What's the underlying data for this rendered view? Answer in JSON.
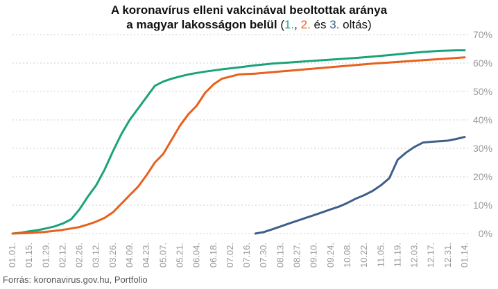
{
  "title": {
    "line1": "A koronavírus elleni vakcinával beoltottak aránya",
    "line2_main": "a magyar lakosságon belül",
    "open_paren": " (",
    "dose1": "1.",
    "comma": ", ",
    "dose2": "2.",
    "and": " és ",
    "dose3": "3.",
    "suffix": " oltás)"
  },
  "source": "Forrás: koronavirus.gov.hu, Portfolio",
  "colors": {
    "dose1": "#1aa37a",
    "dose2": "#e8601c",
    "dose3": "#3d5f8a",
    "grid": "#cccccc",
    "axis_text": "#9a9a9a"
  },
  "chart_data": {
    "type": "line",
    "title": "A koronavírus elleni vakcinával beoltottak aránya a magyar lakosságon belül (1., 2. és 3. oltás)",
    "ylim": [
      0,
      70
    ],
    "yticks": [
      0,
      10,
      20,
      30,
      40,
      50,
      60,
      70
    ],
    "ytick_labels": [
      "0%",
      "10%",
      "20%",
      "30%",
      "40%",
      "50%",
      "60%",
      "70%"
    ],
    "y_axis_side": "right",
    "grid": "horizontal",
    "x_tick_labels": [
      "01.01.",
      "01.15.",
      "01.29.",
      "02.12.",
      "02.26.",
      "03.12.",
      "03.26.",
      "04.09.",
      "04.23.",
      "05.07.",
      "05.21.",
      "06.04.",
      "06.18.",
      "07.02.",
      "07.16.",
      "07.30.",
      "08.13.",
      "08.27.",
      "09.10.",
      "09.24.",
      "10.08.",
      "10.22.",
      "11.05.",
      "11.19.",
      "12.03.",
      "12.17.",
      "12.31.",
      "01.14."
    ],
    "x_unit": "day index from first tick (01.01.), 14 days per tick",
    "series": [
      {
        "name": "1.",
        "x": [
          0,
          7,
          14,
          21,
          28,
          35,
          42,
          49,
          56,
          63,
          70,
          77,
          84,
          91,
          98,
          105,
          112,
          119,
          126,
          133,
          140,
          147,
          154,
          161,
          168,
          175,
          189,
          203,
          217,
          231,
          245,
          259,
          273,
          287,
          301,
          315,
          329,
          343,
          357,
          371,
          378
        ],
        "values": [
          0,
          0.3,
          0.8,
          1.2,
          1.8,
          2.5,
          3.5,
          5,
          8.5,
          13,
          17,
          22.5,
          29,
          35,
          40,
          44,
          48,
          52,
          53.5,
          54.5,
          55.3,
          56,
          56.5,
          57,
          57.4,
          57.8,
          58.5,
          59.2,
          59.8,
          60.2,
          60.6,
          61,
          61.4,
          61.8,
          62.3,
          62.8,
          63.4,
          63.9,
          64.3,
          64.5,
          64.5
        ]
      },
      {
        "name": "2.",
        "x": [
          0,
          14,
          28,
          42,
          56,
          63,
          70,
          77,
          84,
          91,
          98,
          105,
          112,
          119,
          126,
          133,
          140,
          147,
          154,
          161,
          168,
          175,
          189,
          203,
          217,
          231,
          245,
          259,
          273,
          287,
          301,
          315,
          329,
          343,
          357,
          371,
          378
        ],
        "values": [
          0,
          0.2,
          0.6,
          1.3,
          2.3,
          3.2,
          4.2,
          5.5,
          7.5,
          10.5,
          13.5,
          16.5,
          20.5,
          25,
          28,
          33,
          38,
          42,
          45,
          49.5,
          52.5,
          54.5,
          56,
          56.3,
          56.8,
          57.3,
          57.8,
          58.3,
          58.8,
          59.3,
          59.8,
          60.2,
          60.6,
          61,
          61.4,
          61.8,
          62
        ]
      },
      {
        "name": "3.",
        "x": [
          203,
          210,
          217,
          224,
          231,
          238,
          245,
          252,
          259,
          266,
          273,
          280,
          287,
          294,
          301,
          308,
          315,
          322,
          329,
          336,
          343,
          350,
          357,
          364,
          371,
          378
        ],
        "values": [
          0,
          0.5,
          1.5,
          2.5,
          3.5,
          4.5,
          5.5,
          6.5,
          7.5,
          8.5,
          9.5,
          10.8,
          12.3,
          13.5,
          15,
          17,
          19.5,
          26,
          28.5,
          30.5,
          32,
          32.3,
          32.5,
          32.7,
          33.3,
          34
        ]
      }
    ]
  }
}
